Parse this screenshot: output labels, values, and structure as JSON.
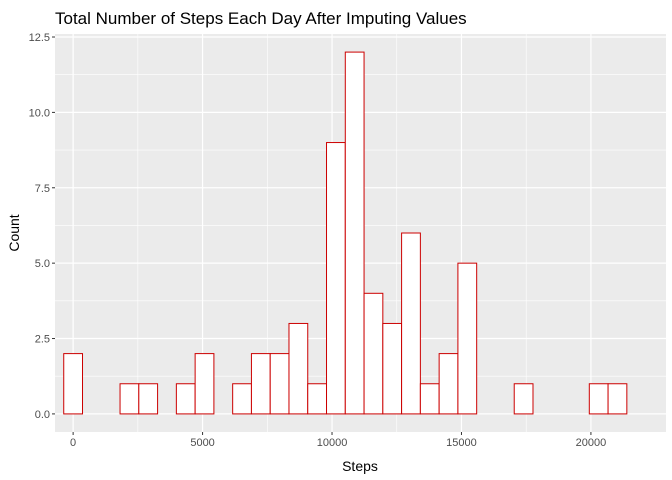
{
  "chart_data": {
    "type": "bar",
    "title": "Total Number of Steps Each Day After Imputing Values",
    "xlabel": "Steps",
    "ylabel": "Count",
    "bin_width": 725,
    "bins": [
      {
        "center": 0,
        "count": 2
      },
      {
        "center": 725,
        "count": 0
      },
      {
        "center": 1450,
        "count": 0
      },
      {
        "center": 2175,
        "count": 1
      },
      {
        "center": 2900,
        "count": 1
      },
      {
        "center": 3625,
        "count": 0
      },
      {
        "center": 4350,
        "count": 1
      },
      {
        "center": 5075,
        "count": 2
      },
      {
        "center": 5800,
        "count": 0
      },
      {
        "center": 6525,
        "count": 1
      },
      {
        "center": 7250,
        "count": 2
      },
      {
        "center": 7975,
        "count": 2
      },
      {
        "center": 8700,
        "count": 3
      },
      {
        "center": 9425,
        "count": 1
      },
      {
        "center": 10150,
        "count": 9
      },
      {
        "center": 10875,
        "count": 12
      },
      {
        "center": 11600,
        "count": 4
      },
      {
        "center": 12325,
        "count": 3
      },
      {
        "center": 13050,
        "count": 6
      },
      {
        "center": 13775,
        "count": 1
      },
      {
        "center": 14500,
        "count": 2
      },
      {
        "center": 15225,
        "count": 5
      },
      {
        "center": 15950,
        "count": 0
      },
      {
        "center": 16675,
        "count": 0
      },
      {
        "center": 17400,
        "count": 1
      },
      {
        "center": 18125,
        "count": 0
      },
      {
        "center": 18850,
        "count": 0
      },
      {
        "center": 19575,
        "count": 0
      },
      {
        "center": 20300,
        "count": 1
      },
      {
        "center": 21025,
        "count": 1
      }
    ],
    "xlim": [
      -700,
      22900
    ],
    "ylim": [
      -0.6,
      12.6
    ],
    "x_ticks": [
      0,
      5000,
      10000,
      15000,
      20000
    ],
    "x_tick_labels": [
      "0",
      "5000",
      "10000",
      "15000",
      "20000"
    ],
    "y_ticks": [
      0,
      2.5,
      5,
      7.5,
      10,
      12.5
    ],
    "y_tick_labels": [
      "0.0",
      "2.5",
      "5.0",
      "7.5",
      "10.0",
      "12.5"
    ],
    "grid": true,
    "colors": {
      "panel_background": "#ebebeb",
      "grid_major": "#ffffff",
      "bar_fill": "#ffffff",
      "bar_outline": "#cc0000",
      "tick_text": "#4d4d4d"
    }
  }
}
